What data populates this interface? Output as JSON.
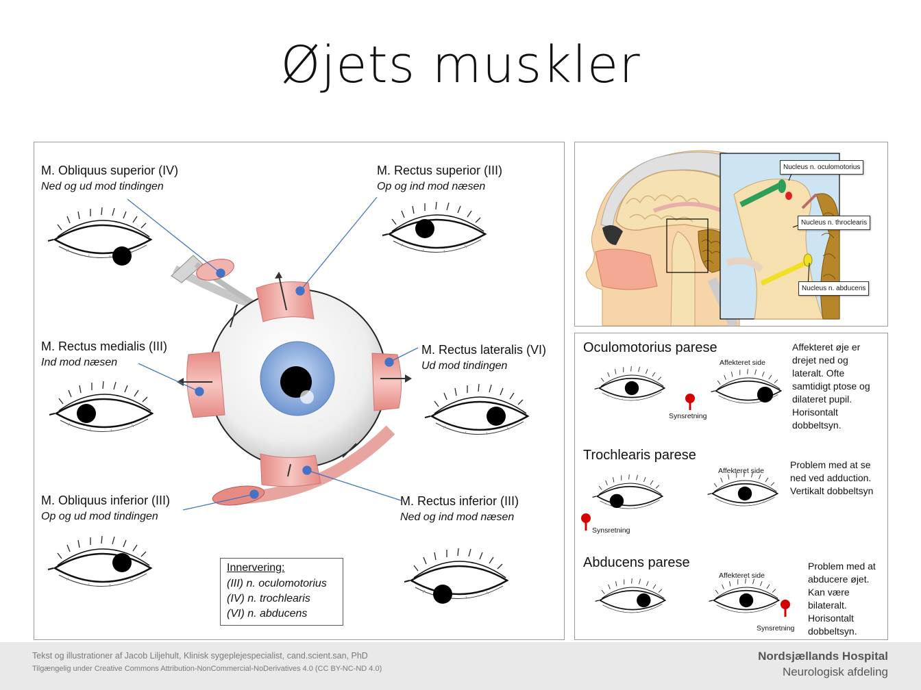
{
  "title": "Øjets muskler",
  "muscles": [
    {
      "name": "M. Obliquus superior (IV)",
      "function": "Ned og ud mod tindingen"
    },
    {
      "name": "M. Rectus superior (III)",
      "function": "Op og ind mod næsen"
    },
    {
      "name": "M. Rectus medialis (III)",
      "function": "Ind mod næsen"
    },
    {
      "name": "M. Rectus lateralis (VI)",
      "function": "Ud mod tindingen"
    },
    {
      "name": "M. Obliquus inferior (III)",
      "function": "Op og ud mod tindingen"
    },
    {
      "name": "M. Rectus inferior (III)",
      "function": "Ned og ind mod næsen"
    }
  ],
  "innervation": {
    "heading": "Innervering:",
    "lines": [
      "(III) n. oculomotorius",
      "(IV) n. trochlearis",
      "(VI) n. abducens"
    ]
  },
  "nuclei": [
    "Nucleus n. oculomotorius",
    "Nucleus n. throclearis",
    "Nucleus n. abducens"
  ],
  "pareses": [
    {
      "title": "Oculomotorius parese",
      "affected_label": "Affekteret side",
      "direction_label": "Synsretning",
      "description": "Affekteret øje er drejet ned og lateralt. Ofte samtidigt ptose og dilateret pupil. Horisontalt dobbeltsyn."
    },
    {
      "title": "Trochlearis parese",
      "affected_label": "Affekteret side",
      "direction_label": "Synsretning",
      "description": "Problem med at se ned ved adduction. Vertikalt dobbeltsyn"
    },
    {
      "title": "Abducens parese",
      "affected_label": "Affekteret side",
      "direction_label": "Synsretning",
      "description": "Problem med at abducere øjet. Kan være bilateralt. Horisontalt dobbeltsyn."
    }
  ],
  "footer": {
    "credit": "Tekst og illustrationer af Jacob Liljehult, Klinisk sygeplejespecialist, cand.scient.san, PhD",
    "license": "Tilgængelig under Creative Commons Attribution-NonCommercial-NoDerivatives 4.0 (CC BY-NC-ND 4.0)",
    "org": "Nordsjællands Hospital",
    "dept": "Neurologisk afdeling"
  },
  "colors": {
    "muscle": "#e8908a",
    "iris": "#8fb0e0",
    "pointer": "#4472c4",
    "nucleus_green": "#2e9e5a",
    "nucleus_red": "#e02020",
    "nucleus_yellow": "#f0e020",
    "marker": "#d40000"
  }
}
